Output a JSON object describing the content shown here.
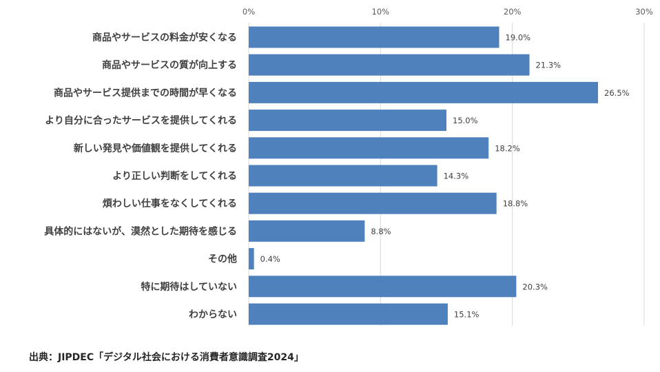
{
  "chart_data": {
    "type": "bar",
    "orientation": "horizontal",
    "categories": [
      "商品やサービスの料金が安くなる",
      "商品やサービスの質が向上する",
      "商品やサービス提供までの時間が早くなる",
      "より自分に合ったサービスを提供してくれる",
      "新しい発見や価値観を提供してくれる",
      "より正しい判断をしてくれる",
      "煩わしい仕事をなくしてくれる",
      "具体的にはないが、漠然とした期待を感じる",
      "その他",
      "特に期待はしていない",
      "わからない"
    ],
    "values": [
      19.0,
      21.3,
      26.5,
      15.0,
      18.2,
      14.3,
      18.8,
      8.8,
      0.4,
      20.3,
      15.1
    ],
    "value_labels": [
      "19.0%",
      "21.3%",
      "26.5%",
      "15.0%",
      "18.2%",
      "14.3%",
      "18.8%",
      "8.8%",
      "0.4%",
      "20.3%",
      "15.1%"
    ],
    "xlim": [
      0,
      30
    ],
    "x_ticks": [
      0,
      10,
      20,
      30
    ],
    "x_tick_labels": [
      "0%",
      "10%",
      "20%",
      "30%"
    ],
    "x_axis_position": "top",
    "grid": true,
    "bar_color": "#4f81bd",
    "gridline_color": "#d9d9d9"
  },
  "source": "出典：JIPDEC「デジタル社会における消費者意識調査2024」"
}
